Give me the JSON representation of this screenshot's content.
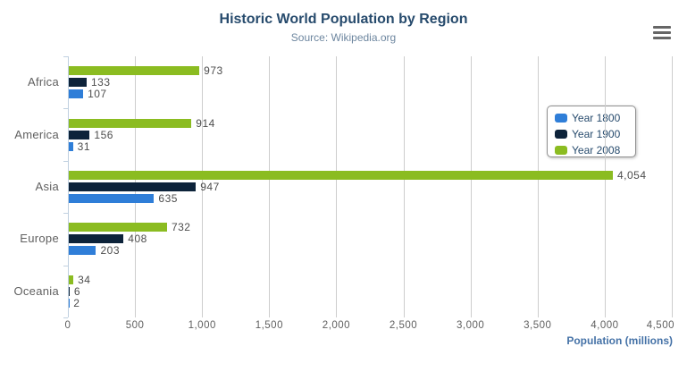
{
  "chart_data": {
    "type": "bar",
    "orientation": "horizontal",
    "title": "Historic World Population by Region",
    "subtitle": "Source: Wikipedia.org",
    "categories": [
      "Africa",
      "America",
      "Asia",
      "Europe",
      "Oceania"
    ],
    "series": [
      {
        "name": "Year 1800",
        "color": "#2f7ed8",
        "values": [
          107,
          31,
          635,
          203,
          2
        ]
      },
      {
        "name": "Year 1900",
        "color": "#0d233a",
        "values": [
          133,
          156,
          947,
          408,
          6
        ]
      },
      {
        "name": "Year 2008",
        "color": "#8bbc21",
        "values": [
          973,
          914,
          4054,
          732,
          34
        ]
      }
    ],
    "bar_order_top_to_bottom": [
      "Year 2008",
      "Year 1900",
      "Year 1800"
    ],
    "data_labels": true,
    "xlabel": "Population (millions)",
    "x_ticks": [
      "0",
      "500",
      "1,000",
      "1,500",
      "2,000",
      "2,500",
      "3,000",
      "3,500",
      "4,000",
      "4,500"
    ],
    "xlim": [
      0,
      4500
    ],
    "grid": true,
    "legend_position": "right"
  },
  "icons": {
    "context_menu": "hamburger-icon"
  },
  "colors": {
    "background": "#ffffff",
    "title": "#274b6d",
    "subtitle": "#6d869f",
    "axis_title": "#4572a7",
    "axis_line": "#c0d0e0",
    "gridline": "#cdcdcd",
    "category_label": "#606060",
    "tick_label": "#606060",
    "data_label": "#4d4d4d",
    "legend_text": "#274b6d",
    "legend_border": "#909090",
    "menu_icon": "#666666",
    "series_blue": "#2f7ed8",
    "series_navy": "#0d233a",
    "series_green": "#8bbc21"
  }
}
